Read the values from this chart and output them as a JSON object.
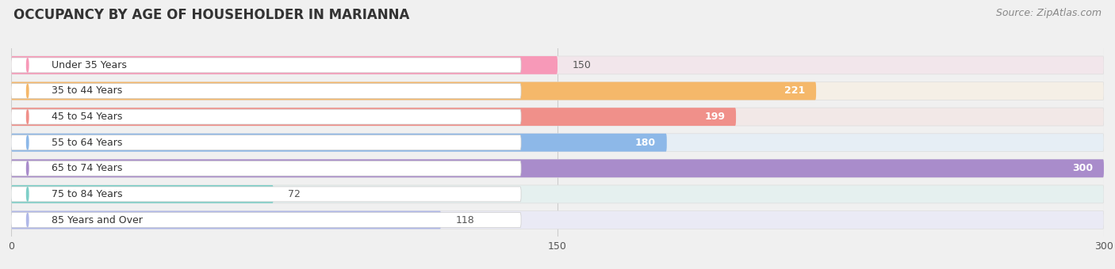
{
  "title": "OCCUPANCY BY AGE OF HOUSEHOLDER IN MARIANNA",
  "source": "Source: ZipAtlas.com",
  "categories": [
    "Under 35 Years",
    "35 to 44 Years",
    "45 to 54 Years",
    "55 to 64 Years",
    "65 to 74 Years",
    "75 to 84 Years",
    "85 Years and Over"
  ],
  "values": [
    150,
    221,
    199,
    180,
    300,
    72,
    118
  ],
  "bar_colors": [
    "#f799b8",
    "#f5b86a",
    "#f0908a",
    "#8db8e8",
    "#a98ccb",
    "#7ecfc8",
    "#b0b8e8"
  ],
  "bar_bg_colors": [
    "#f2e6eb",
    "#f5efe6",
    "#f2e8e7",
    "#e6eef5",
    "#eae6f2",
    "#e5f0ef",
    "#eaeaf5"
  ],
  "label_bg_color": "#ffffff",
  "xlim": [
    0,
    300
  ],
  "xticks": [
    0,
    150,
    300
  ],
  "title_fontsize": 12,
  "source_fontsize": 9,
  "label_fontsize": 9,
  "tick_fontsize": 9,
  "background_color": "#f0f0f0",
  "fig_bg_color": "#f0f0f0",
  "bar_height": 0.7,
  "bar_spacing": 1.0
}
